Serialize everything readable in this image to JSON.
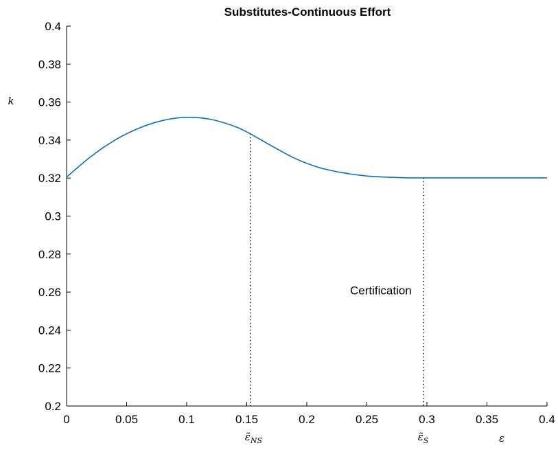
{
  "chart_data": {
    "type": "line",
    "title": "Substitutes-Continuous Effort",
    "xlabel": "ε",
    "ylabel": "k",
    "xlim": [
      0,
      0.4
    ],
    "ylim": [
      0.2,
      0.4
    ],
    "x_ticks": [
      "0",
      "0.05",
      "0.1",
      "0.15",
      "0.2",
      "0.25",
      "0.3",
      "0.35",
      "0.4"
    ],
    "y_ticks": [
      "0.2",
      "0.22",
      "0.24",
      "0.26",
      "0.28",
      "0.3",
      "0.32",
      "0.34",
      "0.36",
      "0.38",
      "0.4"
    ],
    "series": [
      {
        "color": "#0072BD",
        "x": [
          0,
          0.02,
          0.04,
          0.06,
          0.08,
          0.1,
          0.12,
          0.14,
          0.153,
          0.17,
          0.19,
          0.21,
          0.23,
          0.25,
          0.27,
          0.285,
          0.297,
          0.32,
          0.35,
          0.4
        ],
        "y": [
          0.3205,
          0.3312,
          0.3399,
          0.3462,
          0.3503,
          0.352,
          0.3509,
          0.3472,
          0.3433,
          0.3372,
          0.3304,
          0.3256,
          0.3228,
          0.3211,
          0.3204,
          0.3201,
          0.3201,
          0.3201,
          0.3201,
          0.3201
        ]
      }
    ],
    "vlines": [
      {
        "x": 0.153,
        "y_top": 0.3433,
        "label": "ε̃",
        "subscript": "NS",
        "style": "dotted"
      },
      {
        "x": 0.297,
        "y_top": 0.3201,
        "label": "ε̃",
        "subscript": "S",
        "style": "dotted"
      }
    ],
    "annotations": [
      {
        "text": "Certification",
        "x": 0.236,
        "y": 0.261
      }
    ],
    "grid": false,
    "legend": "none"
  }
}
